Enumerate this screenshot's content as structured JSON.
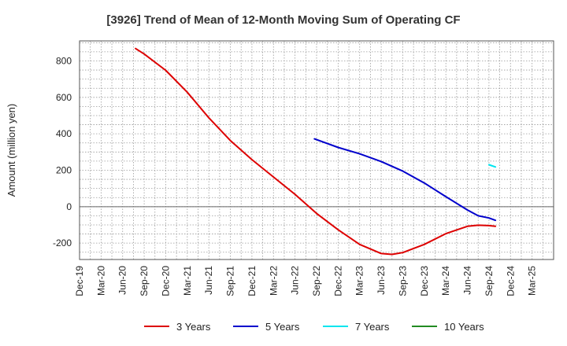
{
  "chart_data": {
    "type": "line",
    "title": "[3926]  Trend of Mean of 12-Month Moving Sum of Operating CF",
    "xlabel": "",
    "ylabel": "Amount (million yen)",
    "ylim": [
      -290,
      910
    ],
    "yticks": [
      -200,
      0,
      200,
      400,
      600,
      800
    ],
    "x_tick_labels": [
      "Dec-19",
      "Mar-20",
      "Jun-20",
      "Sep-20",
      "Dec-20",
      "Mar-21",
      "Jun-21",
      "Sep-21",
      "Dec-21",
      "Mar-22",
      "Jun-22",
      "Sep-22",
      "Dec-22",
      "Mar-23",
      "Jun-23",
      "Sep-23",
      "Dec-23",
      "Mar-24",
      "Jun-24",
      "Sep-24",
      "Dec-24",
      "Mar-25"
    ],
    "grid": true,
    "legend_position": "bottom",
    "series": [
      {
        "name": "3 Years",
        "color": "#dd0000",
        "x": [
          2.6,
          3,
          4,
          5,
          6,
          7,
          8,
          9,
          10,
          11,
          12,
          13,
          14,
          14.5,
          15,
          16,
          17,
          18,
          18.5,
          19,
          19.3
        ],
        "values": [
          868,
          838,
          748,
          628,
          488,
          363,
          258,
          163,
          68,
          -37,
          -127,
          -207,
          -257,
          -262,
          -252,
          -207,
          -148,
          -108,
          -102,
          -104,
          -108
        ]
      },
      {
        "name": "5 Years",
        "color": "#0000cc",
        "x": [
          10.9,
          12,
          13,
          14,
          15,
          16,
          17,
          18,
          18.5,
          19,
          19.3
        ],
        "values": [
          372,
          325,
          290,
          248,
          195,
          130,
          55,
          -18,
          -50,
          -62,
          -75
        ]
      },
      {
        "name": "7 Years",
        "color": "#00e5ee",
        "x": [
          19.0,
          19.3
        ],
        "values": [
          230,
          218
        ]
      },
      {
        "name": "10 Years",
        "color": "#228b22",
        "x": [],
        "values": []
      }
    ]
  }
}
